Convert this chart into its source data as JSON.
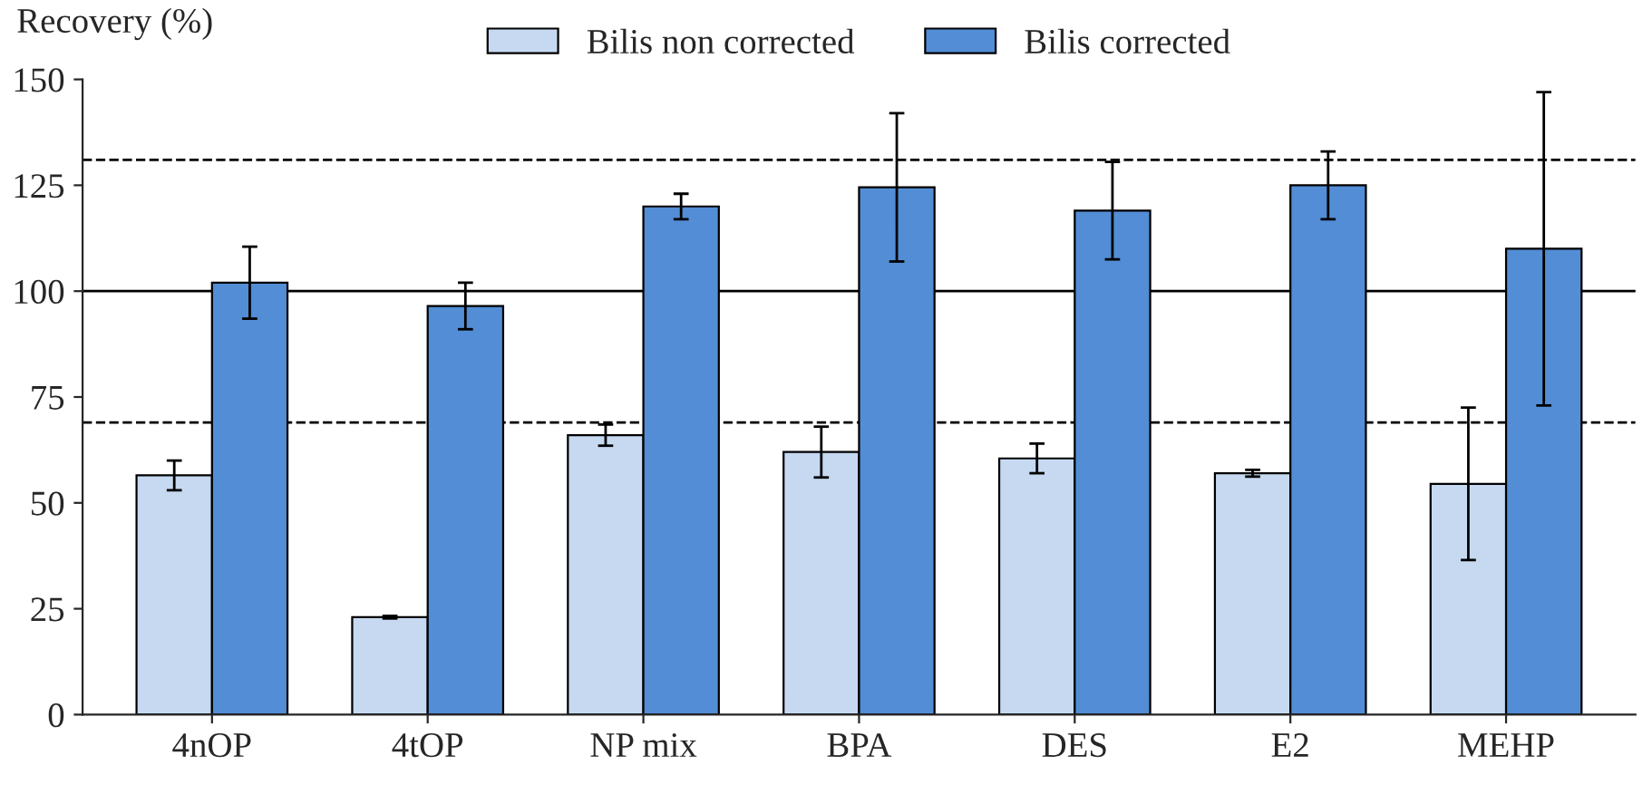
{
  "chart_data": {
    "type": "bar",
    "ylabel": "Recovery (%)",
    "categories": [
      "4nOP",
      "4tOP",
      "NP mix",
      "BPA",
      "DES",
      "E2",
      "MEHP"
    ],
    "series": [
      {
        "name": "Bilis non corrected",
        "color": "#c6d9f1",
        "values": [
          56.5,
          23,
          66,
          62,
          60.5,
          57,
          54.5
        ],
        "errors": [
          3.5,
          0.3,
          2.5,
          6,
          3.5,
          0.8,
          18
        ]
      },
      {
        "name": "Bilis corrected",
        "color": "#528dd5",
        "values": [
          102,
          96.5,
          120,
          124.5,
          119,
          125,
          110
        ],
        "errors": [
          8.5,
          5.5,
          3,
          17.5,
          11.5,
          8,
          37
        ]
      }
    ],
    "ylim": [
      0,
      150
    ],
    "yticks": [
      0,
      25,
      50,
      75,
      100,
      125,
      150
    ],
    "grid": false,
    "legend": "top",
    "ref_lines": [
      {
        "axis": "y",
        "value": 131,
        "line_style": "dashed",
        "color": "#000000"
      },
      {
        "axis": "y",
        "value": 100,
        "line_style": "solid",
        "color": "#000000"
      },
      {
        "axis": "y",
        "value": 69,
        "line_style": "dashed",
        "color": "#000000"
      }
    ]
  }
}
